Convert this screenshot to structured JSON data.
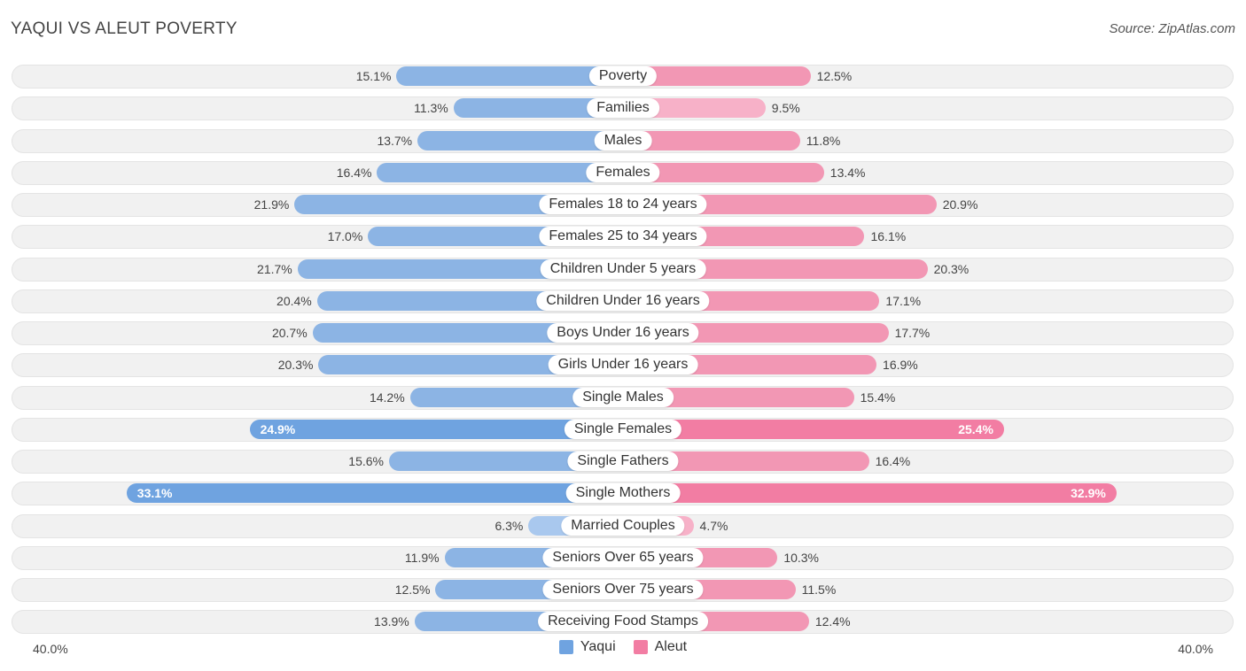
{
  "header": {
    "title": "YAQUI VS ALEUT POVERTY",
    "source": "Source: ZipAtlas.com"
  },
  "colors": {
    "yaqui": "#6fa3e0",
    "yaqui_light": "#a9c8ee",
    "aleut": "#f27da3",
    "aleut_light": "#f7b1c8"
  },
  "axis": {
    "left_label": "40.0%",
    "right_label": "40.0%"
  },
  "legend": {
    "yaqui_label": "Yaqui",
    "aleut_label": "Aleut"
  },
  "chart_data": {
    "type": "bar",
    "orientation": "horizontal-diverging",
    "title": "YAQUI VS ALEUT POVERTY",
    "xlim": [
      -40,
      40
    ],
    "categories": [
      "Poverty",
      "Families",
      "Males",
      "Females",
      "Females 18 to 24 years",
      "Females 25 to 34 years",
      "Children Under 5 years",
      "Children Under 16 years",
      "Boys Under 16 years",
      "Girls Under 16 years",
      "Single Males",
      "Single Females",
      "Single Fathers",
      "Single Mothers",
      "Married Couples",
      "Seniors Over 65 years",
      "Seniors Over 75 years",
      "Receiving Food Stamps"
    ],
    "series": [
      {
        "name": "Yaqui",
        "values": [
          15.1,
          11.3,
          13.7,
          16.4,
          21.9,
          17.0,
          21.7,
          20.4,
          20.7,
          20.3,
          14.2,
          24.9,
          15.6,
          33.1,
          6.3,
          11.9,
          12.5,
          13.9
        ],
        "labels": [
          "15.1%",
          "11.3%",
          "13.7%",
          "16.4%",
          "21.9%",
          "17.0%",
          "21.7%",
          "20.4%",
          "20.7%",
          "20.3%",
          "14.2%",
          "24.9%",
          "15.6%",
          "33.1%",
          "6.3%",
          "11.9%",
          "12.5%",
          "13.9%"
        ]
      },
      {
        "name": "Aleut",
        "values": [
          12.5,
          9.5,
          11.8,
          13.4,
          20.9,
          16.1,
          20.3,
          17.1,
          17.7,
          16.9,
          15.4,
          25.4,
          16.4,
          32.9,
          4.7,
          10.3,
          11.5,
          12.4
        ],
        "labels": [
          "12.5%",
          "9.5%",
          "11.8%",
          "13.4%",
          "20.9%",
          "16.1%",
          "20.3%",
          "17.1%",
          "17.7%",
          "16.9%",
          "15.4%",
          "25.4%",
          "16.4%",
          "32.9%",
          "4.7%",
          "10.3%",
          "11.5%",
          "12.4%"
        ]
      }
    ]
  }
}
